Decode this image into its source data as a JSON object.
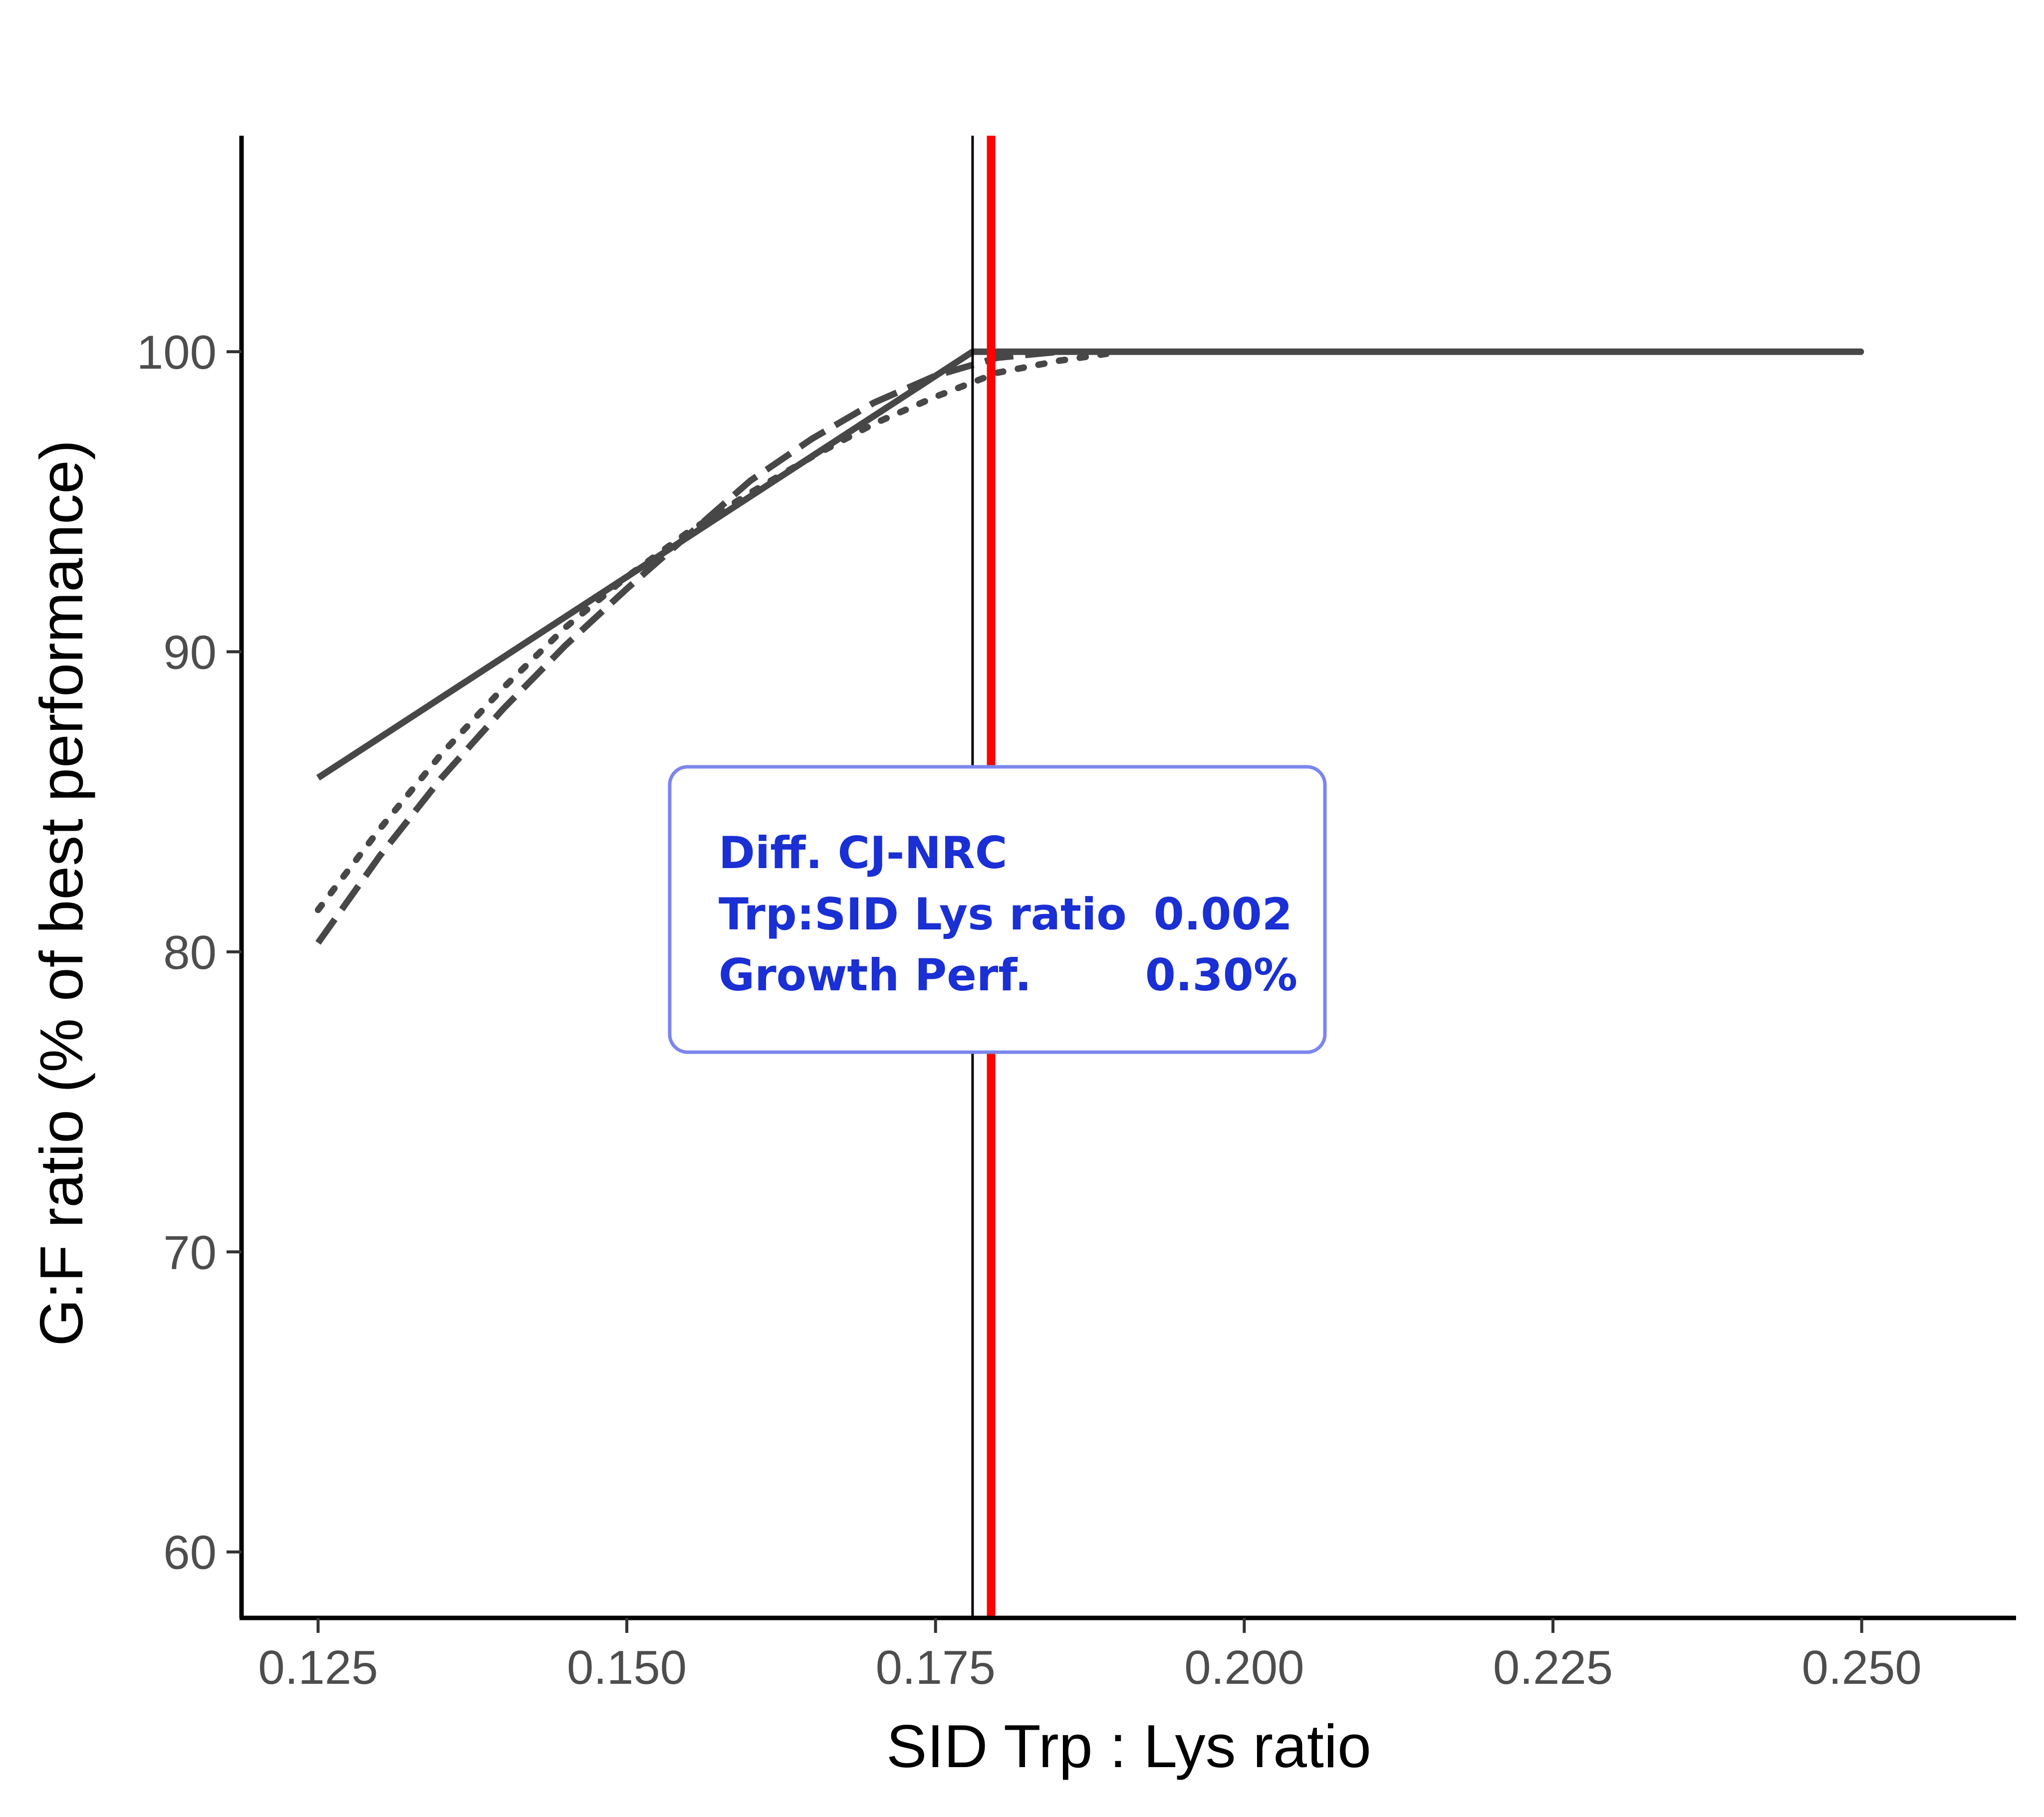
{
  "chart_data": {
    "type": "line",
    "xlabel": "SID Trp : Lys ratio",
    "ylabel": "G:F ratio (% of best performance)",
    "xlim": [
      0.1188,
      0.2625
    ],
    "ylim": [
      57.8,
      107.2
    ],
    "x_ticks": [
      {
        "value": 0.125,
        "label": "0.125"
      },
      {
        "value": 0.15,
        "label": "0.150"
      },
      {
        "value": 0.175,
        "label": "0.175"
      },
      {
        "value": 0.2,
        "label": "0.200"
      },
      {
        "value": 0.225,
        "label": "0.225"
      },
      {
        "value": 0.25,
        "label": "0.250"
      }
    ],
    "y_ticks": [
      {
        "value": 60,
        "label": "60"
      },
      {
        "value": 70,
        "label": "70"
      },
      {
        "value": 80,
        "label": "80"
      },
      {
        "value": 90,
        "label": "90"
      },
      {
        "value": 100,
        "label": "100"
      }
    ],
    "grid": false,
    "series": [
      {
        "style": "solid",
        "color": "#474747",
        "x": [
          0.125,
          0.178,
          0.25
        ],
        "y": [
          85.8,
          100.0,
          100.0
        ]
      },
      {
        "style": "dashed",
        "color": "#474747",
        "x": [
          0.125,
          0.13,
          0.135,
          0.14,
          0.145,
          0.15,
          0.155,
          0.16,
          0.165,
          0.17,
          0.175,
          0.18,
          0.185,
          0.19,
          0.2,
          0.25
        ],
        "y": [
          80.3,
          83.2,
          85.8,
          88.1,
          90.2,
          92.1,
          93.9,
          95.7,
          97.1,
          98.3,
          99.2,
          99.8,
          100.0,
          100.0,
          100.0,
          100.0
        ]
      },
      {
        "style": "dotted",
        "color": "#474747",
        "x": [
          0.125,
          0.13,
          0.135,
          0.14,
          0.145,
          0.15,
          0.155,
          0.16,
          0.165,
          0.17,
          0.175,
          0.18,
          0.185,
          0.19,
          0.2,
          0.25
        ],
        "y": [
          81.4,
          84.1,
          86.6,
          88.8,
          90.8,
          92.5,
          94.0,
          95.3,
          96.5,
          97.6,
          98.5,
          99.3,
          99.7,
          100.0,
          100.0,
          100.0
        ]
      }
    ],
    "vertical_lines": [
      {
        "x": 0.178,
        "color": "#000000"
      },
      {
        "x": 0.1795,
        "color": "#ff0000"
      }
    ],
    "annotation": {
      "title": "Diff. CJ-NRC",
      "rows": [
        {
          "label": "Trp:SID Lys ratio",
          "value": "0.002"
        },
        {
          "label": "Growth Perf.",
          "value": "0.30%"
        }
      ],
      "text_color": "#1a2fd4",
      "border_color": "#7b86ec"
    }
  }
}
